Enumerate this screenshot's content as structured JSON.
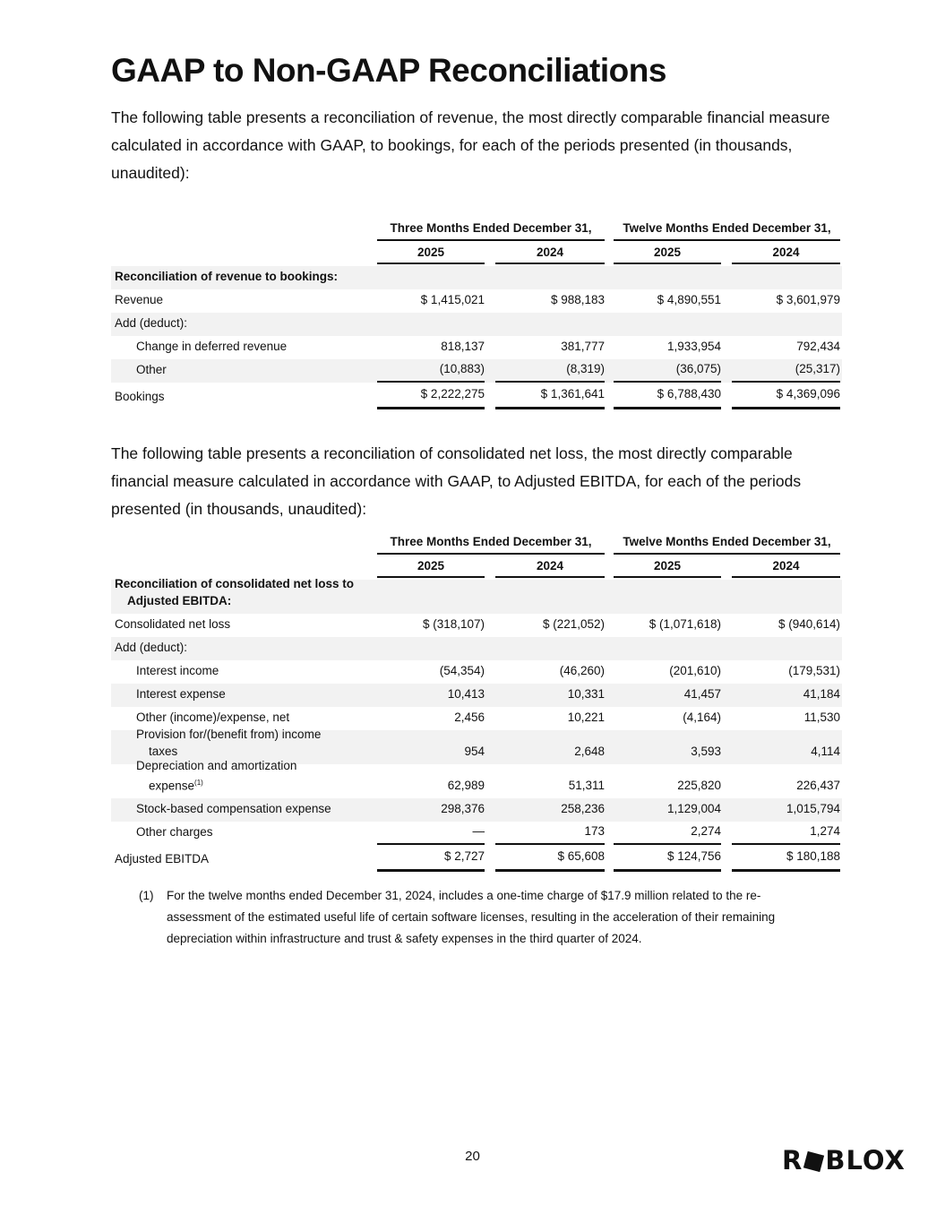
{
  "title": "GAAP to Non-GAAP Reconciliations",
  "intro1": "The following table presents a reconciliation of revenue, the most directly comparable financial measure calculated in accordance with GAAP, to bookings, for each of the periods presented (in thousands, unaudited):",
  "intro2": "The following table presents a reconciliation of consolidated net loss, the most directly comparable financial measure calculated in accordance with GAAP, to Adjusted EBITDA, for each of the periods presented (in thousands, unaudited):",
  "column_groups": [
    "Three Months Ended December 31,",
    "Twelve Months Ended December 31,"
  ],
  "years": [
    "2025",
    "2024",
    "2025",
    "2024"
  ],
  "table1": {
    "rows": [
      {
        "label": "Reconciliation of revenue to bookings:",
        "bold": true,
        "values": []
      },
      {
        "label": "Revenue",
        "values": [
          "$ 1,415,021",
          "$ 988,183",
          "$ 4,890,551",
          "$ 3,601,979"
        ]
      },
      {
        "label": "Add (deduct):",
        "values": []
      },
      {
        "label": "Change in deferred revenue",
        "indent": true,
        "values": [
          "818,137",
          "381,777",
          "1,933,954",
          "792,434"
        ]
      },
      {
        "label": "Other",
        "indent": true,
        "subtotal": true,
        "values": [
          "(10,883)",
          "(8,319)",
          "(36,075)",
          "(25,317)"
        ]
      },
      {
        "label": "Bookings",
        "total": true,
        "values": [
          "$ 2,222,275",
          "$ 1,361,641",
          "$ 6,788,430",
          "$ 4,369,096"
        ]
      }
    ]
  },
  "table2": {
    "rows": [
      {
        "label": "Reconciliation of consolidated net loss to",
        "cont": "Adjusted EBITDA:",
        "bold": true,
        "values": []
      },
      {
        "label": "Consolidated net loss",
        "values": [
          "$ (318,107)",
          "$ (221,052)",
          "$ (1,071,618)",
          "$ (940,614)"
        ]
      },
      {
        "label": "Add (deduct):",
        "values": []
      },
      {
        "label": "Interest income",
        "indent": true,
        "values": [
          "(54,354)",
          "(46,260)",
          "(201,610)",
          "(179,531)"
        ]
      },
      {
        "label": "Interest expense",
        "indent": true,
        "values": [
          "10,413",
          "10,331",
          "41,457",
          "41,184"
        ]
      },
      {
        "label": "Other (income)/expense, net",
        "indent": true,
        "values": [
          "2,456",
          "10,221",
          "(4,164)",
          "11,530"
        ]
      },
      {
        "label": "Provision for/(benefit from) income",
        "cont": "taxes",
        "indent": true,
        "values": [
          "954",
          "2,648",
          "3,593",
          "4,114"
        ]
      },
      {
        "label": "Depreciation and amortization",
        "cont": "expense",
        "sup": "(1)",
        "indent": true,
        "values": [
          "62,989",
          "51,311",
          "225,820",
          "226,437"
        ]
      },
      {
        "label": "Stock-based compensation expense",
        "indent": true,
        "values": [
          "298,376",
          "258,236",
          "1,129,004",
          "1,015,794"
        ]
      },
      {
        "label": "Other charges",
        "indent": true,
        "subtotal": true,
        "values": [
          "—",
          "173",
          "2,274",
          "1,274"
        ]
      },
      {
        "label": "Adjusted EBITDA",
        "total": true,
        "values": [
          "$ 2,727",
          "$ 65,608",
          "$ 124,756",
          "$ 180,188"
        ]
      }
    ]
  },
  "footnote": {
    "marker": "(1)",
    "text": "For the twelve months ended December 31, 2024, includes a one-time charge of $17.9 million related to the re-assessment of the estimated useful life of certain software licenses, resulting in the acceleration of their remaining depreciation within infrastructure and trust & safety expenses in the third quarter of 2024."
  },
  "page_number": "20",
  "logo": "ROBLOX"
}
